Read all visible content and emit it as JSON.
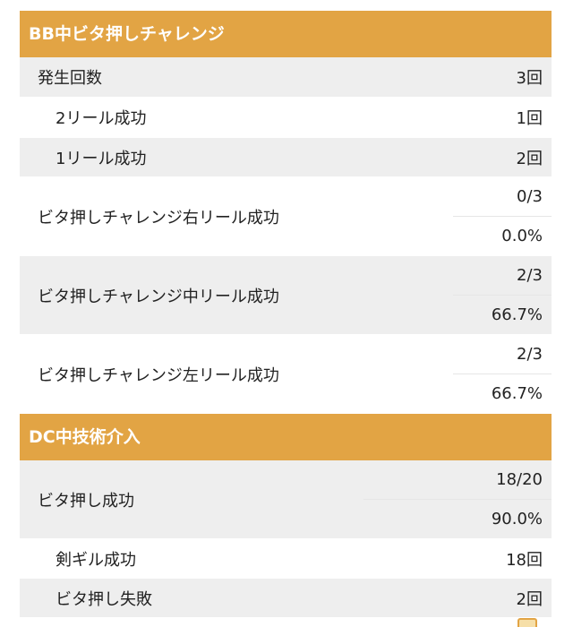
{
  "bb_section": {
    "title": "BB中ビタ押しチャレンジ",
    "rows": [
      {
        "label": "発生回数",
        "value": "3回"
      },
      {
        "label": "2リール成功",
        "value": "1回"
      },
      {
        "label": "1リール成功",
        "value": "2回"
      },
      {
        "label": "ビタ押しチャレンジ右リール成功",
        "fraction": "0/3",
        "percent": "0.0%"
      },
      {
        "label": "ビタ押しチャレンジ中リール成功",
        "fraction": "2/3",
        "percent": "66.7%"
      },
      {
        "label": "ビタ押しチャレンジ左リール成功",
        "fraction": "2/3",
        "percent": "66.7%"
      }
    ]
  },
  "dc_section": {
    "title": "DC中技術介入",
    "rows": [
      {
        "label": "ビタ押し成功",
        "fraction": "18/20",
        "percent": "90.0%"
      },
      {
        "label": "剣ギル成功",
        "value": "18回"
      },
      {
        "label": "ビタ押し失敗",
        "value": "2回"
      }
    ]
  },
  "colors": {
    "header_bg": "#e2a444",
    "row_gray": "#eeeeee"
  }
}
